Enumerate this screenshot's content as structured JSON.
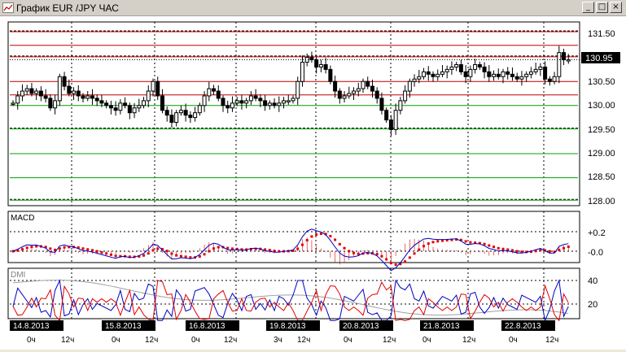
{
  "window": {
    "title": "График EUR /JPY  ЧАС",
    "buttons": {
      "minimize": "_",
      "maximize": "□",
      "close": "×"
    }
  },
  "colors": {
    "background": "#ffffff",
    "candle": "#000000",
    "support_line": "#00a000",
    "resistance_line": "#c00000",
    "macd_signal": "#e00000",
    "macd_line": "#0000c0",
    "dmi_adx": "#a0a0a0",
    "dmi_plus": "#0000c0",
    "dmi_minus": "#e00000"
  },
  "price_panel": {
    "current_price": "130.95",
    "y_ticks": [
      "131.50",
      "131.00",
      "130.50",
      "130.00",
      "129.50",
      "129.00",
      "128.50",
      "128.00"
    ]
  },
  "macd_panel": {
    "label": "MACD",
    "y_ticks": [
      "+0.2",
      "-0.0"
    ]
  },
  "dmi_panel": {
    "label": "DMI",
    "y_ticks": [
      "40",
      "20"
    ]
  },
  "time_axis": {
    "dates": [
      "14.8.2013",
      "15.8.2013",
      "16.8.2013",
      "19.8.2013",
      "20.8.2013",
      "21.8.2013",
      "22.8.2013"
    ],
    "hours": [
      "0ч",
      "12ч",
      "0ч",
      "12ч",
      "0ч",
      "12ч",
      "3ч",
      "12ч",
      "0ч",
      "12ч",
      "0ч",
      "12ч",
      "0ч",
      "12ч"
    ]
  },
  "chart_data": {
    "type": "candlestick",
    "title": "",
    "ylim": [
      127.95,
      131.65
    ],
    "horizontal_levels": [
      {
        "value": 131.55,
        "color": "#c00000",
        "style": "dashed"
      },
      {
        "value": 131.25,
        "color": "#c00000",
        "style": "solid"
      },
      {
        "value": 131.03,
        "color": "#c00000",
        "style": "dashed"
      },
      {
        "value": 130.5,
        "color": "#c00000",
        "style": "solid"
      },
      {
        "value": 130.22,
        "color": "#c00000",
        "style": "solid"
      },
      {
        "value": 130.0,
        "color": "#00a000",
        "style": "solid"
      },
      {
        "value": 129.53,
        "color": "#00a000",
        "style": "dashed"
      },
      {
        "value": 129.0,
        "color": "#00a000",
        "style": "solid"
      },
      {
        "value": 128.5,
        "color": "#00a000",
        "style": "solid"
      },
      {
        "value": 128.05,
        "color": "#00a000",
        "style": "dashed"
      }
    ],
    "close_series": [
      130.05,
      130.2,
      130.3,
      130.35,
      130.25,
      130.3,
      130.2,
      130.15,
      129.95,
      130.1,
      130.6,
      130.4,
      130.25,
      130.3,
      130.2,
      130.15,
      130.2,
      130.15,
      130.1,
      130.05,
      130.0,
      129.95,
      129.9,
      130.05,
      130.0,
      129.85,
      129.95,
      130.0,
      130.1,
      130.3,
      130.5,
      130.2,
      129.9,
      129.8,
      129.65,
      129.85,
      129.9,
      129.8,
      129.75,
      129.85,
      130.0,
      130.2,
      130.35,
      130.3,
      130.15,
      130.0,
      129.95,
      130.05,
      130.1,
      130.05,
      130.1,
      130.2,
      130.15,
      130.1,
      130.0,
      130.05,
      130.0,
      130.05,
      130.1,
      130.1,
      130.15,
      130.5,
      130.9,
      131.0,
      130.95,
      130.8,
      130.85,
      130.75,
      130.5,
      130.3,
      130.15,
      130.2,
      130.25,
      130.3,
      130.35,
      130.5,
      130.4,
      130.3,
      130.15,
      129.9,
      129.7,
      129.5,
      129.9,
      130.1,
      130.3,
      130.5,
      130.55,
      130.6,
      130.7,
      130.65,
      130.6,
      130.65,
      130.7,
      130.75,
      130.8,
      130.85,
      130.7,
      130.6,
      130.75,
      130.85,
      130.8,
      130.7,
      130.6,
      130.65,
      130.6,
      130.7,
      130.65,
      130.6,
      130.55,
      130.6,
      130.65,
      130.7,
      130.75,
      130.8,
      130.55,
      130.5,
      130.6,
      131.1,
      130.95,
      130.95
    ],
    "series": [
      {
        "name": "MACD",
        "panel": "macd"
      },
      {
        "name": "DMI",
        "panel": "dmi"
      }
    ]
  }
}
